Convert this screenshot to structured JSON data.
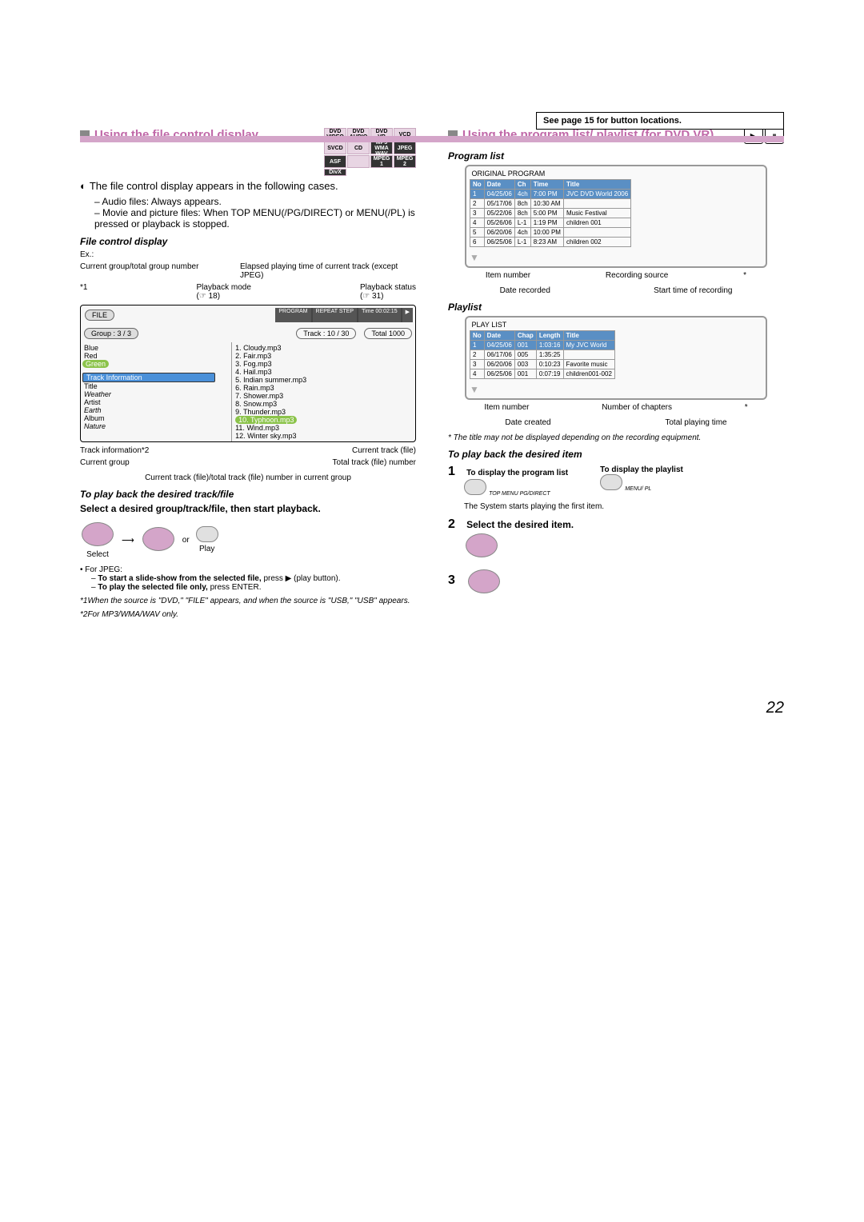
{
  "note": "See page 15 for button locations.",
  "left": {
    "title": "Using the file control display",
    "desc": "The file control display appears in the following cases.",
    "bullets": [
      "Audio files: Always appears.",
      "Movie and picture files: When TOP MENU(/PG/DIRECT) or MENU(/PL) is pressed or playback is stopped."
    ],
    "formats": [
      "DVD VIDEO",
      "DVD AUDIO",
      "DVD VR",
      "",
      "VCD",
      "SVCD",
      "CD",
      "",
      "MP3 WMA WAV",
      "JPEG",
      "ASF",
      "",
      "MPEG 1",
      "MPEG 2",
      "DivX",
      ""
    ],
    "format_dark": [
      8,
      9,
      10,
      12,
      13,
      14
    ],
    "fcd_label": "File control display",
    "ex": "Ex.:",
    "labels": {
      "l1": "Current group/total group number",
      "l2": "Elapsed playing time of current track (except JPEG)",
      "l3": "Playback mode",
      "l3b": "(☞ 18)",
      "l4": "Playback status",
      "l4b": "(☞ 31)",
      "star1": "*1"
    },
    "status": {
      "file": "FILE",
      "prog": "PROGRAM",
      "rep": "REPEAT STEP",
      "time": "Time 00:02:15",
      "play": "▶"
    },
    "group_label": "Group : 3 / 3",
    "track_label": "Track : 10 / 30",
    "total_label": "Total 1000",
    "groups": [
      "Blue",
      "Red",
      "Green"
    ],
    "track_info_hdr": "Track Information",
    "track_info": [
      "Title",
      "Artist",
      "Album"
    ],
    "weather": "Weather",
    "earth": "Earth",
    "nature": "Nature",
    "tracks": [
      "1. Cloudy.mp3",
      "2. Fair.mp3",
      "3. Fog.mp3",
      "4. Hail.mp3",
      "5. Indian summer.mp3",
      "6. Rain.mp3",
      "7. Shower.mp3",
      "8. Snow.mp3",
      "9. Thunder.mp3",
      "10. Typhoon.mp3",
      "11. Wind.mp3",
      "12. Winter sky.mp3"
    ],
    "call_ti": "Track information*2",
    "call_cg": "Current group",
    "call_ct": "Current track (file)",
    "call_tt": "Total track (file) number",
    "call_foot": "Current track (file)/total track (file) number in current group",
    "playback_hdr": "To play back the desired track/file",
    "playback_txt": "Select a desired group/track/file, then start playback.",
    "select": "Select",
    "play": "Play",
    "or": "or",
    "jpeg_hdr": "For JPEG:",
    "jpeg1a": "To start a slide-show from the selected file,",
    "jpeg1b": "press ▶ (play button).",
    "jpeg2a": "To play the selected file only,",
    "jpeg2b": "press ENTER.",
    "fn1": "*1When the source is \"DVD,\" \"FILE\" appears, and when the source is \"USB,\" \"USB\" appears.",
    "fn2": "*2For MP3/WMA/WAV only."
  },
  "right": {
    "title": "Using the program list/ playlist (for DVD VR)",
    "prog_label": "Program list",
    "playlist_label": "Playlist",
    "orig_hdr": "ORIGINAL PROGRAM",
    "prog_cols": [
      "No",
      "Date",
      "Ch",
      "Time",
      "Title"
    ],
    "prog_rows": [
      [
        "1",
        "04/25/06",
        "4ch",
        "7:00 PM",
        "JVC DVD World 2006"
      ],
      [
        "2",
        "05/17/06",
        "8ch",
        "10:30 AM",
        ""
      ],
      [
        "3",
        "05/22/06",
        "8ch",
        "5:00 PM",
        "Music Festival"
      ],
      [
        "4",
        "05/26/06",
        "L-1",
        "1:19 PM",
        "children 001"
      ],
      [
        "5",
        "06/20/06",
        "4ch",
        "10:00 PM",
        ""
      ],
      [
        "6",
        "06/25/06",
        "L-1",
        "8:23 AM",
        "children 002"
      ]
    ],
    "prog_callouts": [
      "Item number",
      "Recording source",
      "*"
    ],
    "prog_callouts2": [
      "Date recorded",
      "Start time of recording"
    ],
    "pl_hdr": "PLAY LIST",
    "pl_cols": [
      "No",
      "Date",
      "Chap",
      "Length",
      "Title"
    ],
    "pl_rows": [
      [
        "1",
        "04/25/06",
        "001",
        "1:03:16",
        "My JVC World"
      ],
      [
        "2",
        "06/17/06",
        "005",
        "1:35:25",
        ""
      ],
      [
        "3",
        "06/20/06",
        "003",
        "0:10:23",
        "Favorite music"
      ],
      [
        "4",
        "06/25/06",
        "001",
        "0:07:19",
        "children001-002"
      ]
    ],
    "pl_callouts": [
      "Item number",
      "Number of chapters",
      "*"
    ],
    "pl_callouts2": [
      "Date created",
      "Total playing time"
    ],
    "note_star": "* The title may not be displayed depending on the recording equipment.",
    "playback_hdr": "To play back the desired item",
    "step1a": "To display the program list",
    "step1b": "To display the playlist",
    "step1_body": "The System starts playing the first item.",
    "step2": "Select the desired item.",
    "btn1": "TOP MENU PG/DIRECT",
    "btn2": "MENU/ PL"
  },
  "page": "22"
}
